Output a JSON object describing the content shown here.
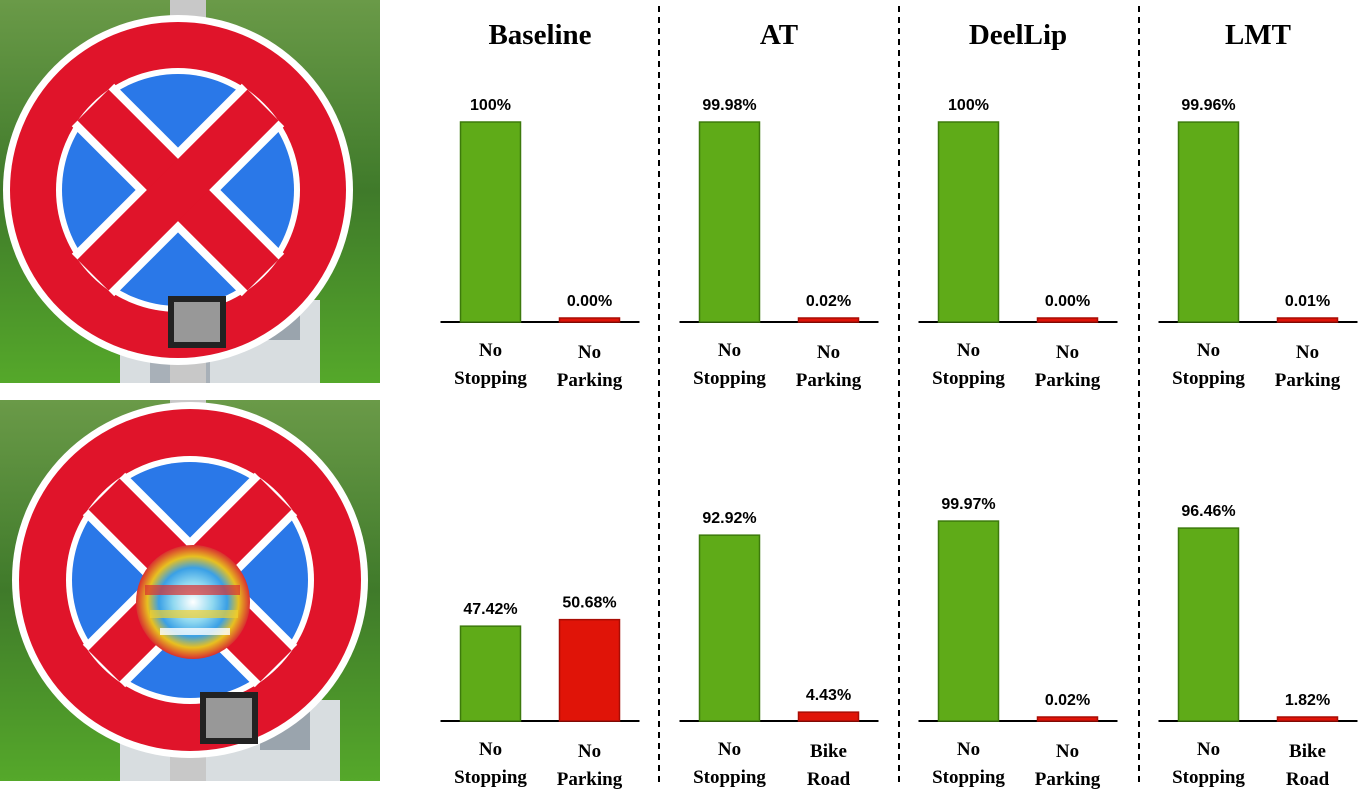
{
  "colors": {
    "primary_class": "#5fab18",
    "other_class": "#e01408",
    "sign_red": "#e0142a",
    "sign_blue": "#2a78e8"
  },
  "images": [
    {
      "name": "clean-sign-photo",
      "icon": "no-stopping-sign"
    },
    {
      "name": "patched-sign-photo",
      "icon": "no-stopping-sign-with-adversarial-patch"
    }
  ],
  "chart_data": [
    {
      "type": "bar",
      "title": "Baseline",
      "row": "clean",
      "ylim": [
        0,
        100
      ],
      "categories": [
        "No Stopping",
        "No Parking"
      ],
      "values": [
        100,
        0.0
      ],
      "labels": [
        "100%",
        "0.00%"
      ]
    },
    {
      "type": "bar",
      "title": "AT",
      "row": "clean",
      "ylim": [
        0,
        100
      ],
      "categories": [
        "No Stopping",
        "No Parking"
      ],
      "values": [
        99.98,
        0.02
      ],
      "labels": [
        "99.98%",
        "0.02%"
      ]
    },
    {
      "type": "bar",
      "title": "DeelLip",
      "row": "clean",
      "ylim": [
        0,
        100
      ],
      "categories": [
        "No Stopping",
        "No Parking"
      ],
      "values": [
        100,
        0.0
      ],
      "labels": [
        "100%",
        "0.00%"
      ]
    },
    {
      "type": "bar",
      "title": "LMT",
      "row": "clean",
      "ylim": [
        0,
        100
      ],
      "categories": [
        "No Stopping",
        "No Parking"
      ],
      "values": [
        99.96,
        0.01
      ],
      "labels": [
        "99.96%",
        "0.01%"
      ]
    },
    {
      "type": "bar",
      "title": "Baseline",
      "row": "patched",
      "ylim": [
        0,
        100
      ],
      "categories": [
        "No Stopping",
        "No Parking"
      ],
      "values": [
        47.42,
        50.68
      ],
      "labels": [
        "47.42%",
        "50.68%"
      ]
    },
    {
      "type": "bar",
      "title": "AT",
      "row": "patched",
      "ylim": [
        0,
        100
      ],
      "categories": [
        "No Stopping",
        "Bike Road"
      ],
      "values": [
        92.92,
        4.43
      ],
      "labels": [
        "92.92%",
        "4.43%"
      ]
    },
    {
      "type": "bar",
      "title": "DeelLip",
      "row": "patched",
      "ylim": [
        0,
        100
      ],
      "categories": [
        "No Stopping",
        "No Parking"
      ],
      "values": [
        99.97,
        0.02
      ],
      "labels": [
        "99.97%",
        "0.02%"
      ]
    },
    {
      "type": "bar",
      "title": "LMT",
      "row": "patched",
      "ylim": [
        0,
        100
      ],
      "categories": [
        "No Stopping",
        "Bike Road"
      ],
      "values": [
        96.46,
        1.82
      ],
      "labels": [
        "96.46%",
        "1.82%"
      ]
    }
  ]
}
